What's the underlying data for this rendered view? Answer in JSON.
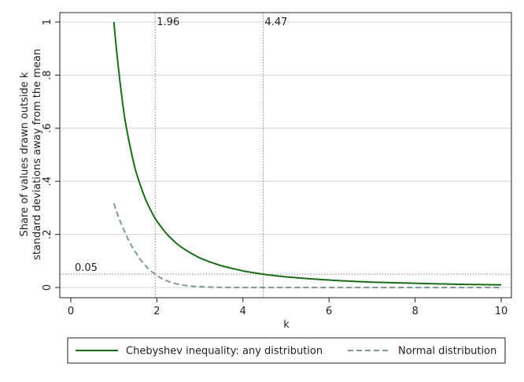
{
  "chart_data": {
    "type": "line",
    "xlabel": "k",
    "ylabel_line1": "Share of values drawn outside k",
    "ylabel_line2": "standard deviations away from the mean",
    "xlim": [
      0,
      10
    ],
    "ylim": [
      0,
      1
    ],
    "x_ticks": [
      0,
      2,
      4,
      6,
      8,
      10
    ],
    "x_tick_labels": [
      "0",
      "2",
      "4",
      "6",
      "8",
      "10"
    ],
    "y_ticks": [
      0,
      0.2,
      0.4,
      0.6,
      0.8,
      1
    ],
    "y_tick_labels": [
      "0",
      ".2",
      ".4",
      ".6",
      ".8",
      "1"
    ],
    "grid": true,
    "legend_position": "bottom",
    "series": [
      {
        "name": "Chebyshev inequality: any distribution",
        "color": "#1a6b1a",
        "style": "solid",
        "x": [
          1,
          1.25,
          1.5,
          1.75,
          1.96,
          2.25,
          2.5,
          3,
          3.5,
          4,
          4.47,
          5,
          6,
          7,
          8,
          9,
          10
        ],
        "y": [
          1,
          0.64,
          0.444,
          0.327,
          0.26,
          0.198,
          0.16,
          0.111,
          0.082,
          0.0625,
          0.05,
          0.04,
          0.028,
          0.02,
          0.016,
          0.012,
          0.01
        ]
      },
      {
        "name": "Normal distribution",
        "color": "#7f9a93",
        "style": "dashed",
        "x": [
          1,
          1.25,
          1.5,
          1.75,
          1.96,
          2.25,
          2.5,
          2.75,
          3,
          3.5,
          4,
          5,
          6,
          7,
          8,
          9,
          10
        ],
        "y": [
          0.317,
          0.211,
          0.134,
          0.08,
          0.05,
          0.024,
          0.012,
          0.006,
          0.003,
          0.0005,
          0.0001,
          0,
          0,
          0,
          0,
          0,
          0
        ]
      }
    ],
    "reference_lines": [
      {
        "axis": "x",
        "value": 1.96,
        "label": "1.96"
      },
      {
        "axis": "x",
        "value": 4.47,
        "label": "4.47"
      },
      {
        "axis": "y",
        "value": 0.05,
        "label": "0.05"
      }
    ]
  }
}
